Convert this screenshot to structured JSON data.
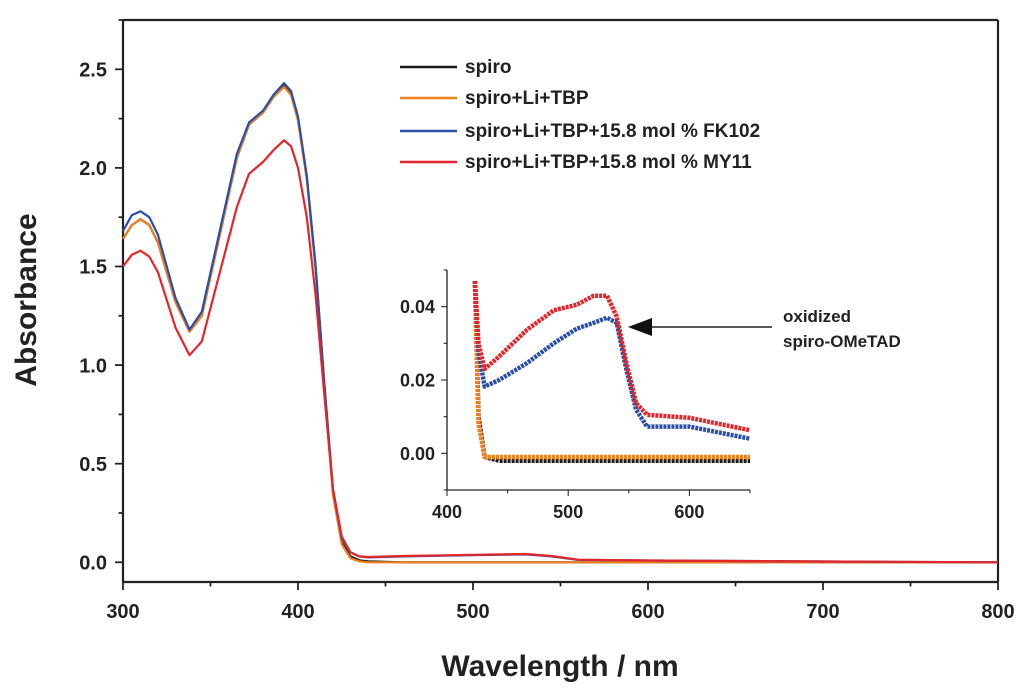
{
  "chart_data": [
    {
      "type": "line",
      "xlabel": "Wavelength / nm",
      "ylabel": "Absorbance",
      "xlim": [
        300,
        800
      ],
      "ylim": [
        -0.1,
        2.75
      ],
      "xticks": [
        "300",
        "400",
        "500",
        "600",
        "700",
        "800"
      ],
      "yticks": [
        "0.0",
        "0.5",
        "1.0",
        "1.5",
        "2.0",
        "2.5"
      ],
      "grid": false,
      "legend_position": "top-right",
      "x": [
        300,
        305,
        310,
        315,
        320,
        330,
        338,
        345,
        355,
        365,
        372,
        380,
        386,
        392,
        396,
        400,
        405,
        410,
        415,
        420,
        425,
        430,
        435,
        440,
        460,
        500,
        530,
        545,
        560,
        600,
        700,
        800
      ],
      "series": [
        {
          "name": "spiro",
          "color": "#1a1a1a",
          "values": [
            1.64,
            1.71,
            1.74,
            1.71,
            1.62,
            1.32,
            1.17,
            1.25,
            1.65,
            2.05,
            2.22,
            2.28,
            2.36,
            2.42,
            2.38,
            2.25,
            1.95,
            1.5,
            0.9,
            0.35,
            0.1,
            0.03,
            0.01,
            0.005,
            0.0,
            0.0,
            0.0,
            0.0,
            0.0,
            0.0,
            0.0,
            0.0
          ]
        },
        {
          "name": "spiro+Li+TBP",
          "color": "#f07f1e",
          "values": [
            1.64,
            1.71,
            1.74,
            1.71,
            1.62,
            1.32,
            1.17,
            1.25,
            1.65,
            2.05,
            2.22,
            2.28,
            2.36,
            2.41,
            2.37,
            2.24,
            1.94,
            1.49,
            0.89,
            0.34,
            0.09,
            0.02,
            0.005,
            0.0,
            0.0,
            0.0,
            0.0,
            0.0,
            0.0,
            0.0,
            0.0,
            0.0
          ]
        },
        {
          "name": "spiro+Li+TBP+15.8 mol % FK102",
          "color": "#2a4fa8",
          "values": [
            1.68,
            1.76,
            1.78,
            1.75,
            1.66,
            1.34,
            1.18,
            1.27,
            1.67,
            2.07,
            2.23,
            2.29,
            2.37,
            2.43,
            2.39,
            2.26,
            1.96,
            1.51,
            0.91,
            0.37,
            0.12,
            0.05,
            0.03,
            0.025,
            0.03,
            0.036,
            0.04,
            0.03,
            0.012,
            0.009,
            0.004,
            0.0
          ]
        },
        {
          "name": "spiro+Li+TBP+15.8 mol % MY11",
          "color": "#e3262b",
          "values": [
            1.5,
            1.56,
            1.58,
            1.55,
            1.47,
            1.19,
            1.05,
            1.12,
            1.46,
            1.8,
            1.97,
            2.03,
            2.09,
            2.14,
            2.11,
            2.0,
            1.75,
            1.36,
            0.85,
            0.37,
            0.13,
            0.05,
            0.03,
            0.027,
            0.032,
            0.038,
            0.042,
            0.032,
            0.013,
            0.009,
            0.004,
            0.0
          ]
        }
      ]
    },
    {
      "type": "scatter",
      "xlim": [
        400,
        650
      ],
      "ylim": [
        -0.01,
        0.05
      ],
      "xticks": [
        "400",
        "500",
        "600"
      ],
      "yticks": [
        "0.00",
        "0.02",
        "0.04"
      ],
      "grid": false,
      "annotation": [
        "oxidized",
        "spiro-OMeTAD"
      ],
      "x": [
        423,
        426,
        431,
        443,
        466,
        488,
        507,
        521,
        532,
        540,
        548,
        556,
        565,
        600,
        650
      ],
      "series": [
        {
          "name": "spiro",
          "color": "#1a1a1a",
          "values": [
            0.047,
            0.01,
            -0.001,
            -0.002,
            -0.002,
            -0.002,
            -0.002,
            -0.002,
            -0.002,
            -0.002,
            -0.002,
            -0.002,
            -0.002,
            -0.002,
            -0.002
          ]
        },
        {
          "name": "spiro+Li+TBP",
          "color": "#f07f1e",
          "values": [
            0.047,
            0.008,
            -0.001,
            -0.001,
            -0.001,
            -0.001,
            -0.001,
            -0.001,
            -0.001,
            -0.001,
            -0.001,
            -0.001,
            -0.001,
            -0.001,
            -0.001
          ]
        },
        {
          "name": "spiro+Li+TBP+15.8 mol % FK102",
          "color": "#2a4fa8",
          "values": [
            0.047,
            0.028,
            0.0182,
            0.02,
            0.0246,
            0.03,
            0.034,
            0.0356,
            0.037,
            0.0356,
            0.0228,
            0.0119,
            0.0073,
            0.0073,
            0.004
          ]
        },
        {
          "name": "spiro+Li+TBP+15.8 mol % MY11",
          "color": "#e3262b",
          "values": [
            0.047,
            0.03,
            0.023,
            0.0264,
            0.0337,
            0.039,
            0.0405,
            0.043,
            0.043,
            0.0373,
            0.0246,
            0.0137,
            0.0105,
            0.0097,
            0.0063
          ]
        }
      ]
    }
  ]
}
